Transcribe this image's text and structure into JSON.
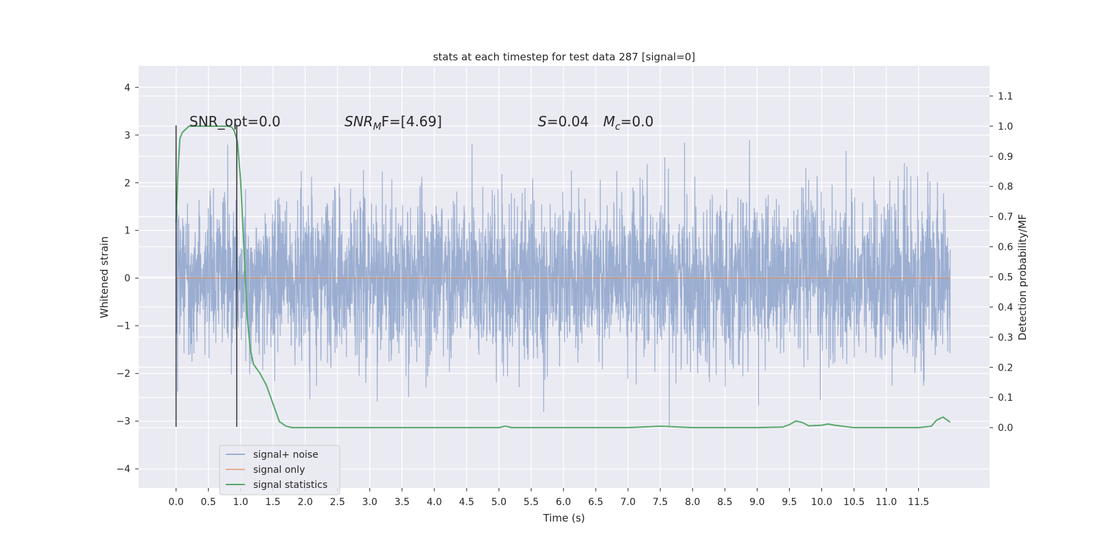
{
  "chart_data": {
    "type": "line",
    "title": "stats at each timestep for test data 287 [signal=0]",
    "xlabel": "Time (s)",
    "ylabel_left": "Whitened strain",
    "ylabel_right": "Detection probability/MF",
    "xlim": [
      -0.58,
      12.6
    ],
    "ylim_left": [
      -4.4,
      4.45
    ],
    "ylim_right": [
      -0.2,
      1.2
    ],
    "grid": true,
    "x_ticks": [
      "0.0",
      "0.5",
      "1.0",
      "1.5",
      "2.0",
      "2.5",
      "3.0",
      "3.5",
      "4.0",
      "4.5",
      "5.0",
      "5.5",
      "6.0",
      "6.5",
      "7.0",
      "7.5",
      "8.0",
      "8.5",
      "9.0",
      "9.5",
      "10.0",
      "10.5",
      "11.0",
      "11.5"
    ],
    "y_left_ticks": [
      4,
      3,
      2,
      1,
      0,
      -1,
      -2,
      -3,
      -4
    ],
    "y_right_ticks": [
      "1.1",
      "1.0",
      "0.9",
      "0.8",
      "0.7",
      "0.6",
      "0.5",
      "0.4",
      "0.3",
      "0.2",
      "0.1",
      "0.0"
    ],
    "annotations": {
      "snr_opt": "SNR_opt=0.0",
      "snr_mf_var": "SNR",
      "snr_mf_sub": "M",
      "snr_mf_rest": "F=[4.69]",
      "s_var": "S",
      "s_rest": "=0.04",
      "mc_var": "M",
      "mc_sub": "c",
      "mc_rest": "=0.0"
    },
    "vertical_markers": [
      0.0,
      0.94
    ],
    "series": [
      {
        "name": "signal+ noise",
        "color": "#4c72b0",
        "noise_amplitude": 0.85,
        "x_range": [
          0.0,
          11.99
        ]
      },
      {
        "name": "signal only",
        "color": "#dd8452",
        "values_constant": 0.0
      },
      {
        "name": "signal statistics",
        "color": "#55a868",
        "x": [
          0.0,
          0.03,
          0.06,
          0.1,
          0.15,
          0.2,
          0.3,
          0.5,
          0.7,
          0.8,
          0.86,
          0.9,
          0.95,
          1.0,
          1.05,
          1.1,
          1.15,
          1.2,
          1.3,
          1.4,
          1.5,
          1.55,
          1.6,
          1.7,
          1.8,
          2.0,
          2.5,
          3.0,
          3.5,
          4.0,
          4.5,
          5.0,
          5.1,
          5.2,
          5.5,
          6.0,
          6.5,
          7.0,
          7.5,
          8.0,
          8.5,
          9.0,
          9.4,
          9.5,
          9.6,
          9.7,
          9.8,
          10.0,
          10.1,
          10.2,
          10.5,
          11.0,
          11.5,
          11.7,
          11.78,
          11.88,
          11.99
        ],
        "y": [
          0.68,
          0.85,
          0.96,
          0.98,
          0.99,
          1.0,
          1.0,
          1.0,
          1.0,
          1.0,
          0.997,
          0.985,
          0.95,
          0.82,
          0.6,
          0.37,
          0.26,
          0.21,
          0.18,
          0.14,
          0.08,
          0.05,
          0.02,
          0.005,
          0.0,
          0.0,
          0.0,
          0.0,
          0.0,
          0.0,
          0.0,
          0.0,
          0.005,
          0.0,
          0.0,
          0.0,
          0.0,
          0.0,
          0.005,
          0.0,
          0.0,
          0.0,
          0.002,
          0.01,
          0.022,
          0.017,
          0.006,
          0.008,
          0.012,
          0.008,
          0.0,
          0.0,
          0.0,
          0.005,
          0.025,
          0.035,
          0.018
        ]
      }
    ],
    "legend_position": "lower-left"
  }
}
